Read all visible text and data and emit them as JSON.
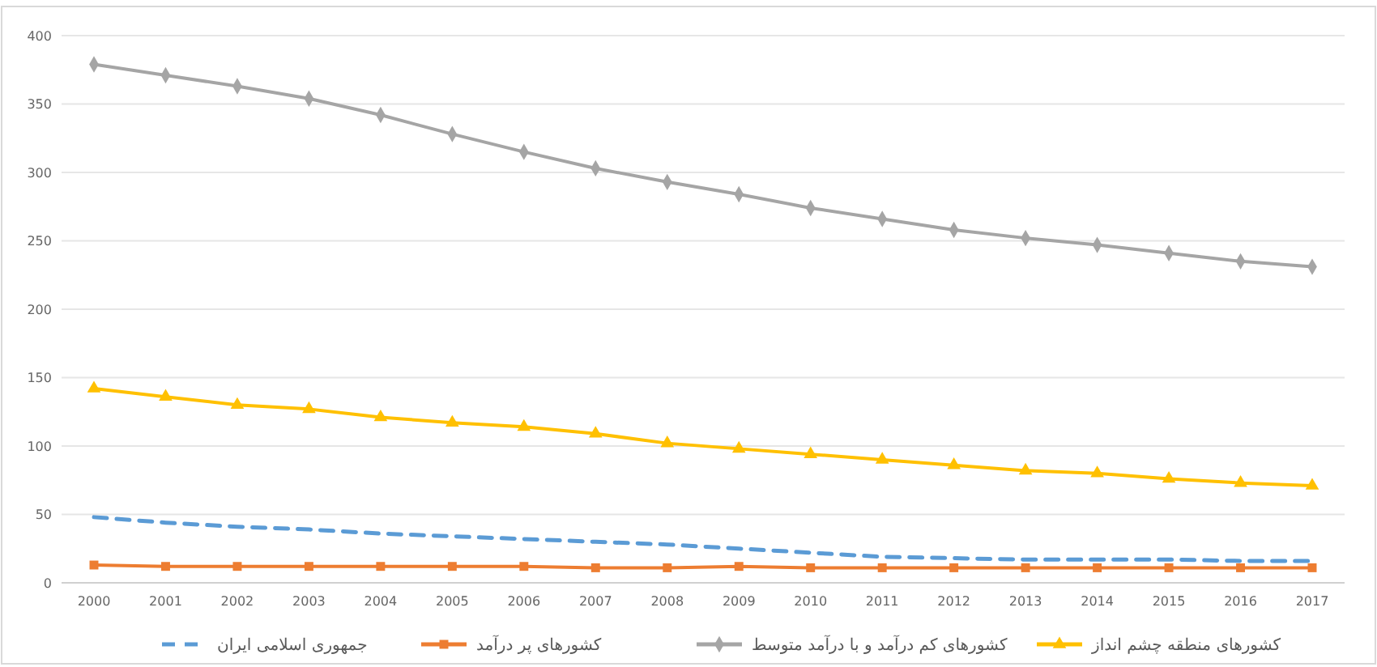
{
  "chart_data": {
    "type": "line",
    "categories": [
      "2000",
      "2001",
      "2002",
      "2003",
      "2004",
      "2005",
      "2006",
      "2007",
      "2008",
      "2009",
      "2010",
      "2011",
      "2012",
      "2013",
      "2014",
      "2015",
      "2016",
      "2017"
    ],
    "ylim": [
      0,
      400
    ],
    "yticks": [
      0,
      50,
      100,
      150,
      200,
      250,
      300,
      350,
      400
    ],
    "grid": "y",
    "legend": "bottom",
    "series": [
      {
        "name": "جمهوری اسلامی ایران",
        "color": "#5b9bd5",
        "marker": "none",
        "line_style": "dashed",
        "values": [
          48,
          44,
          41,
          39,
          36,
          34,
          32,
          30,
          28,
          25,
          22,
          19,
          18,
          17,
          17,
          17,
          16,
          16
        ]
      },
      {
        "name": "کشورهای پر درآمد",
        "color": "#ed7d31",
        "marker": "square",
        "line_style": "solid",
        "values": [
          13,
          12,
          12,
          12,
          12,
          12,
          12,
          11,
          11,
          12,
          11,
          11,
          11,
          11,
          11,
          11,
          11,
          11
        ]
      },
      {
        "name": "کشورهای کم درآمد و با درآمد متوسط",
        "color": "#a5a5a5",
        "marker": "diamond",
        "line_style": "solid",
        "values": [
          379,
          371,
          363,
          354,
          342,
          328,
          315,
          303,
          293,
          284,
          274,
          266,
          258,
          252,
          247,
          241,
          235,
          231
        ]
      },
      {
        "name": "کشورهای منطقه چشم انداز",
        "color": "#ffc000",
        "marker": "triangle",
        "line_style": "solid",
        "values": [
          142,
          136,
          130,
          127,
          121,
          117,
          114,
          109,
          102,
          98,
          94,
          90,
          86,
          82,
          80,
          76,
          73,
          71
        ]
      }
    ]
  }
}
